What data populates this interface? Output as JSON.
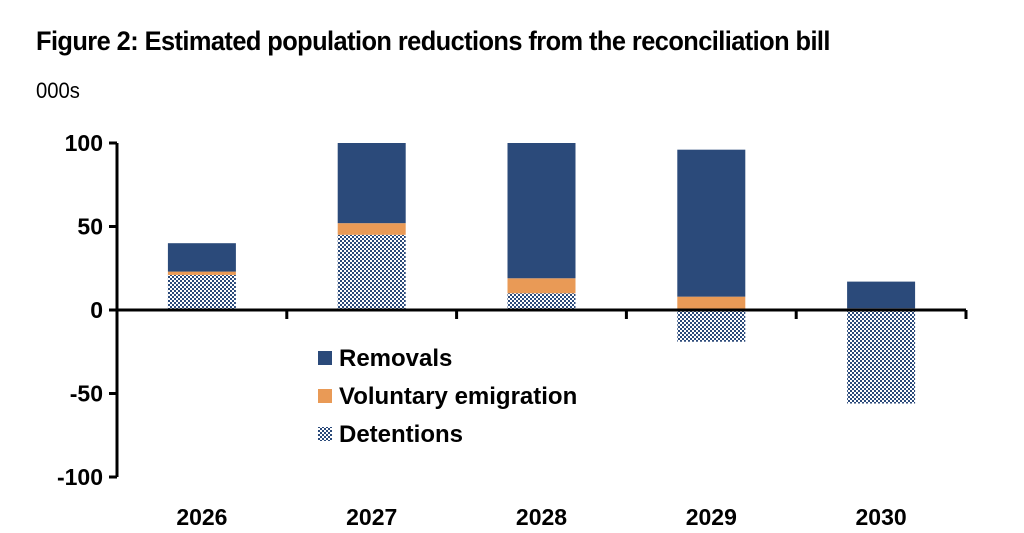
{
  "chart_data": {
    "type": "bar",
    "stacked": true,
    "title": "Figure 2: Estimated population reductions from the reconciliation bill",
    "subtitle": "000s",
    "xlabel": "",
    "ylabel": "000s",
    "categories": [
      "2026",
      "2027",
      "2028",
      "2029",
      "2030"
    ],
    "series": [
      {
        "name": "Detentions",
        "color": "#2b4a7a",
        "pattern": "checker",
        "values": [
          21,
          45,
          10,
          -19,
          -56
        ]
      },
      {
        "name": "Voluntary emigration",
        "color": "#e99a56",
        "values": [
          2,
          7,
          9,
          8,
          1
        ]
      },
      {
        "name": "Removals",
        "color": "#2b4a7a",
        "values": [
          17,
          48,
          81,
          88,
          16
        ]
      }
    ],
    "legend_order": [
      "Removals",
      "Voluntary emigration",
      "Detentions"
    ],
    "legend_position": "center",
    "ylim": [
      -100,
      100
    ],
    "yticks": [
      100,
      50,
      0,
      -50,
      -100
    ],
    "grid": false
  }
}
